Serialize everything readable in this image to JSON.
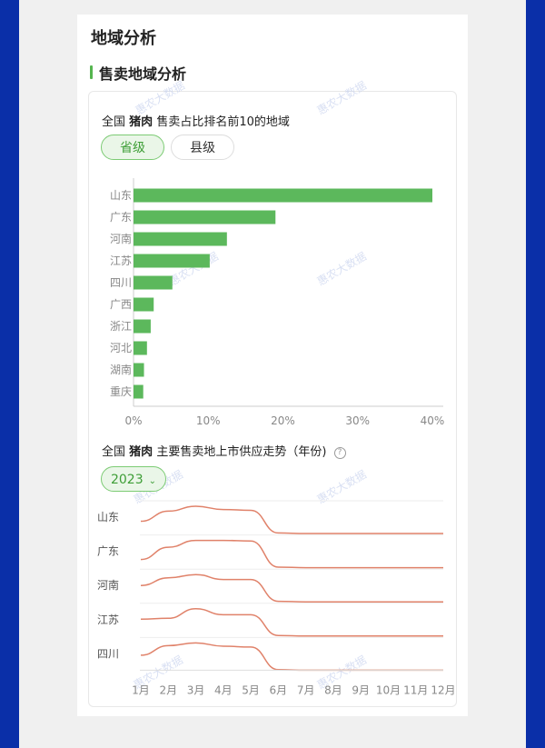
{
  "page": {
    "title": "地域分析",
    "section_title": "售卖地域分析",
    "watermark": "惠农大数据"
  },
  "bar_section": {
    "heading_prefix": "全国",
    "heading_product": "猪肉",
    "heading_suffix": "售卖占比排名前10的地域",
    "tabs": [
      "省级",
      "县级"
    ],
    "active_tab": "省级"
  },
  "trend_section": {
    "heading_prefix": "全国",
    "heading_product": "猪肉",
    "heading_suffix": "主要售卖地上市供应走势（年份)",
    "year": "2023"
  },
  "colors": {
    "bar": "#5cb85c",
    "line": "#e0826a",
    "accent": "#55b54f",
    "side_band": "#0a2fa8"
  },
  "chart_data": [
    {
      "type": "bar",
      "orientation": "horizontal",
      "categories": [
        "山东",
        "广东",
        "河南",
        "江苏",
        "四川",
        "广西",
        "浙江",
        "河北",
        "湖南",
        "重庆"
      ],
      "values": [
        40,
        19,
        12.5,
        10.2,
        5.2,
        2.7,
        2.3,
        1.8,
        1.4,
        1.3
      ],
      "xlim": [
        0,
        40
      ],
      "x_ticks": [
        "0%",
        "10%",
        "20%",
        "30%",
        "40%"
      ],
      "grid": false
    },
    {
      "type": "line",
      "x": [
        "1月",
        "2月",
        "3月",
        "4月",
        "5月",
        "6月",
        "7月",
        "8月",
        "9月",
        "10月",
        "11月",
        "12月"
      ],
      "series": [
        {
          "name": "山东",
          "values": [
            0.45,
            0.82,
            1.0,
            0.88,
            0.85,
            0.02,
            0.0,
            0.0,
            0.0,
            0.0,
            0.0,
            0.0
          ]
        },
        {
          "name": "广东",
          "values": [
            0.3,
            0.75,
            1.0,
            1.0,
            0.98,
            0.02,
            0.0,
            0.0,
            0.0,
            0.0,
            0.0,
            0.0
          ]
        },
        {
          "name": "河南",
          "values": [
            0.6,
            0.88,
            1.0,
            0.82,
            0.82,
            0.02,
            0.0,
            0.0,
            0.0,
            0.0,
            0.0,
            0.0
          ]
        },
        {
          "name": "江苏",
          "values": [
            0.62,
            0.65,
            1.0,
            0.78,
            0.78,
            0.02,
            0.0,
            0.0,
            0.0,
            0.0,
            0.0,
            0.0
          ]
        },
        {
          "name": "四川",
          "values": [
            0.55,
            0.9,
            1.0,
            0.88,
            0.85,
            0.02,
            0.0,
            0.0,
            0.0,
            0.0,
            0.0,
            0.0
          ]
        }
      ],
      "grid": true
    }
  ]
}
